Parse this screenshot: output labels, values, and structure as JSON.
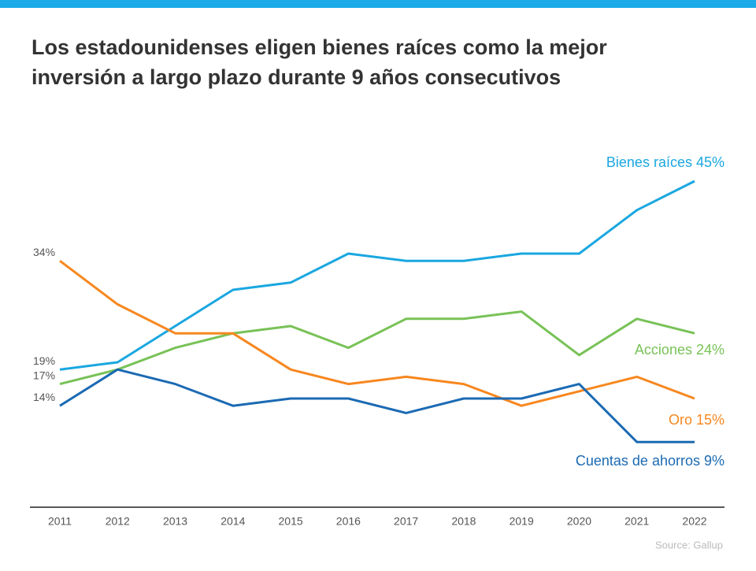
{
  "chart_data": {
    "type": "line",
    "title_lines": [
      "Los estadounidenses eligen bienes raíces como la mejor",
      "inversión a largo plazo durante 9 años consecutivos"
    ],
    "source": "Source: Gallup",
    "categories": [
      "2011",
      "2012",
      "2013",
      "2014",
      "2015",
      "2016",
      "2017",
      "2018",
      "2019",
      "2020",
      "2021",
      "2022"
    ],
    "ylim": [
      0,
      50
    ],
    "series": [
      {
        "name": "Bienes raíces 45%",
        "color": "#1aa7e0",
        "values": [
          19,
          20,
          25,
          30,
          31,
          35,
          34,
          34,
          35,
          35,
          41,
          45
        ],
        "value_labels": [
          "19%",
          null,
          null,
          null,
          null,
          null,
          null,
          null,
          null,
          null,
          null,
          null
        ]
      },
      {
        "name": "Acciones 24%",
        "color": "#78c257",
        "values": [
          17,
          19,
          22,
          24,
          25,
          22,
          26,
          26,
          27,
          21,
          26,
          24
        ],
        "value_labels": [
          "17%",
          null,
          null,
          null,
          null,
          null,
          null,
          null,
          null,
          null,
          null,
          null
        ]
      },
      {
        "name": "Oro 15%",
        "color": "#f7871f",
        "values": [
          34,
          28,
          24,
          24,
          19,
          17,
          18,
          17,
          14,
          16,
          18,
          15
        ],
        "value_labels": [
          "34%",
          null,
          null,
          null,
          null,
          null,
          null,
          null,
          null,
          null,
          null,
          null
        ]
      },
      {
        "name": "Cuentas de ahorros 9%",
        "color": "#1b6ab3",
        "values": [
          14,
          19,
          17,
          14,
          15,
          15,
          13,
          15,
          15,
          17,
          9,
          9
        ],
        "value_labels": [
          "14%",
          null,
          null,
          null,
          null,
          null,
          null,
          null,
          null,
          null,
          null,
          null
        ]
      }
    ]
  }
}
